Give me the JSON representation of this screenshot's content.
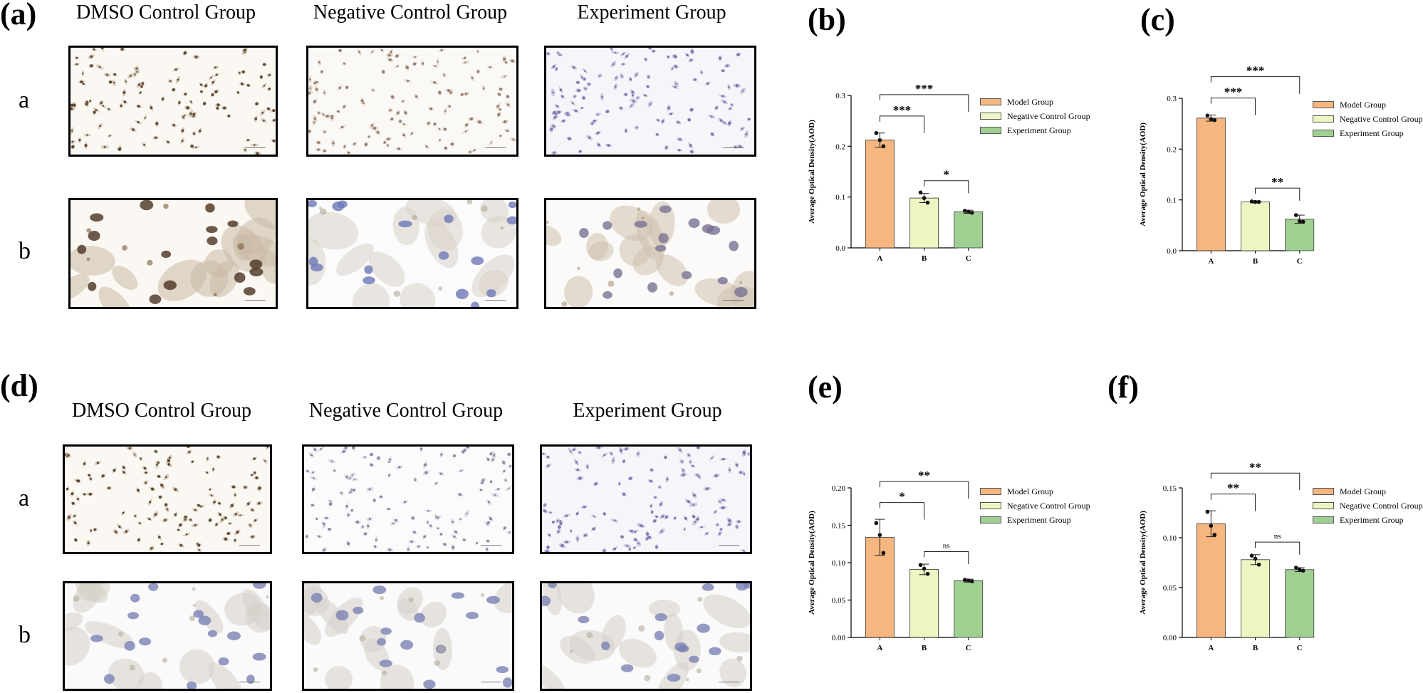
{
  "figure": {
    "top": {
      "panel_letter": "(a)",
      "column_titles": [
        "DMSO Control Group",
        "Negative Control Group",
        "Experiment Group"
      ],
      "row_labels": [
        "a",
        "b"
      ],
      "images": [
        {
          "row": "a",
          "column": "DMSO Control Group",
          "tone": "dark-brown",
          "magnification": "low"
        },
        {
          "row": "a",
          "column": "Negative Control Group",
          "tone": "light-brown",
          "magnification": "low"
        },
        {
          "row": "a",
          "column": "Experiment Group",
          "tone": "blue-violet",
          "magnification": "low"
        },
        {
          "row": "b",
          "column": "DMSO Control Group",
          "tone": "dark-brown",
          "magnification": "high"
        },
        {
          "row": "b",
          "column": "Negative Control Group",
          "tone": "blue",
          "magnification": "high"
        },
        {
          "row": "b",
          "column": "Experiment Group",
          "tone": "grey-brown",
          "magnification": "high"
        }
      ]
    },
    "bottom": {
      "panel_letter": "(d)",
      "column_titles": [
        "DMSO Control Group",
        "Negative Control Group",
        "Experiment Group"
      ],
      "row_labels": [
        "a",
        "b"
      ],
      "images": [
        {
          "row": "a",
          "column": "DMSO Control Group",
          "tone": "dark-brown",
          "magnification": "low"
        },
        {
          "row": "a",
          "column": "Negative Control Group",
          "tone": "light-grey",
          "magnification": "low"
        },
        {
          "row": "a",
          "column": "Experiment Group",
          "tone": "blue-violet",
          "magnification": "low"
        },
        {
          "row": "b",
          "column": "DMSO Control Group",
          "tone": "blue-grey",
          "magnification": "high"
        },
        {
          "row": "b",
          "column": "Negative Control Group",
          "tone": "blue-grey",
          "magnification": "high"
        },
        {
          "row": "b",
          "column": "Experiment Group",
          "tone": "blue-grey",
          "magnification": "high"
        }
      ]
    },
    "colors": {
      "model": "#f6b67f",
      "negative": "#eef5c2",
      "experiment": "#9fd092",
      "outline": "#333333"
    }
  },
  "chart_data": [
    {
      "panel_letter": "(b)",
      "type": "bar",
      "categories": [
        "A",
        "B",
        "C"
      ],
      "values": [
        0.212,
        0.098,
        0.071
      ],
      "errors": [
        0.014,
        0.009,
        0.003
      ],
      "points": [
        [
          0.226,
          0.212,
          0.2
        ],
        [
          0.109,
          0.098,
          0.089
        ],
        [
          0.073,
          0.071,
          0.069
        ]
      ],
      "ylabel": "Average Optical Density(AOD)",
      "ylim": [
        0,
        0.3
      ],
      "yticks": [
        0,
        0.1,
        0.2,
        0.3
      ],
      "ytick_labels": [
        "0.0",
        "0.1",
        "0.2",
        "0.3"
      ],
      "legend": [
        "Model Group",
        "Negative Control Group",
        "Experiment Group"
      ],
      "legend_position": "right",
      "significance": [
        {
          "from": "A",
          "to": "B",
          "label": "***",
          "level": 1
        },
        {
          "from": "B",
          "to": "C",
          "label": "*",
          "level": 0
        },
        {
          "from": "A",
          "to": "C",
          "label": "***",
          "level": 2
        }
      ]
    },
    {
      "panel_letter": "(c)",
      "type": "bar",
      "categories": [
        "A",
        "B",
        "C"
      ],
      "values": [
        0.261,
        0.096,
        0.062
      ],
      "errors": [
        0.006,
        0.002,
        0.008
      ],
      "points": [
        [
          0.266,
          0.259,
          0.257
        ],
        [
          0.097,
          0.096,
          0.096
        ],
        [
          0.07,
          0.058,
          0.057
        ]
      ],
      "ylabel": "Average Optical Density(AOD)",
      "ylim": [
        0,
        0.3
      ],
      "yticks": [
        0,
        0.1,
        0.2,
        0.3
      ],
      "ytick_labels": [
        "0.0",
        "0.1",
        "0.2",
        "0.3"
      ],
      "legend": [
        "Model Group",
        "Negative Control Group",
        "Experiment Group"
      ],
      "legend_position": "right",
      "significance": [
        {
          "from": "A",
          "to": "B",
          "label": "***",
          "level": 1
        },
        {
          "from": "B",
          "to": "C",
          "label": "**",
          "level": 0
        },
        {
          "from": "A",
          "to": "C",
          "label": "***",
          "level": 2
        }
      ]
    },
    {
      "panel_letter": "(e)",
      "type": "bar",
      "categories": [
        "A",
        "B",
        "C"
      ],
      "values": [
        0.134,
        0.091,
        0.076
      ],
      "errors": [
        0.024,
        0.007,
        0.002
      ],
      "points": [
        [
          0.153,
          0.137,
          0.113
        ],
        [
          0.097,
          0.092,
          0.085
        ],
        [
          0.077,
          0.076,
          0.075
        ]
      ],
      "ylabel": "Average Optical Density(AOD)",
      "ylim": [
        0,
        0.2
      ],
      "yticks": [
        0,
        0.05,
        0.1,
        0.15,
        0.2
      ],
      "ytick_labels": [
        "0.00",
        "0.05",
        "0.10",
        "0.15",
        "0.20"
      ],
      "legend": [
        "Model Group",
        "Negative Control Group",
        "Experiment Group"
      ],
      "legend_position": "right",
      "significance": [
        {
          "from": "A",
          "to": "B",
          "label": "*",
          "level": 1
        },
        {
          "from": "B",
          "to": "C",
          "label": "ns",
          "level": 0
        },
        {
          "from": "A",
          "to": "C",
          "label": "**",
          "level": 2
        }
      ]
    },
    {
      "panel_letter": "(f)",
      "type": "bar",
      "categories": [
        "A",
        "B",
        "C"
      ],
      "values": [
        0.114,
        0.078,
        0.068
      ],
      "errors": [
        0.013,
        0.005,
        0.002
      ],
      "points": [
        [
          0.126,
          0.112,
          0.103
        ],
        [
          0.082,
          0.079,
          0.073
        ],
        [
          0.07,
          0.068,
          0.067
        ]
      ],
      "ylabel": "Average Optical Density(AOD)",
      "ylim": [
        0,
        0.15
      ],
      "yticks": [
        0,
        0.05,
        0.1,
        0.15
      ],
      "ytick_labels": [
        "0.00",
        "0.05",
        "0.10",
        "0.15"
      ],
      "legend": [
        "Model Group",
        "Negative Control Group",
        "Experiment Group"
      ],
      "legend_position": "right",
      "significance": [
        {
          "from": "A",
          "to": "B",
          "label": "**",
          "level": 1
        },
        {
          "from": "B",
          "to": "C",
          "label": "ns",
          "level": 0
        },
        {
          "from": "A",
          "to": "C",
          "label": "**",
          "level": 2
        }
      ]
    }
  ]
}
